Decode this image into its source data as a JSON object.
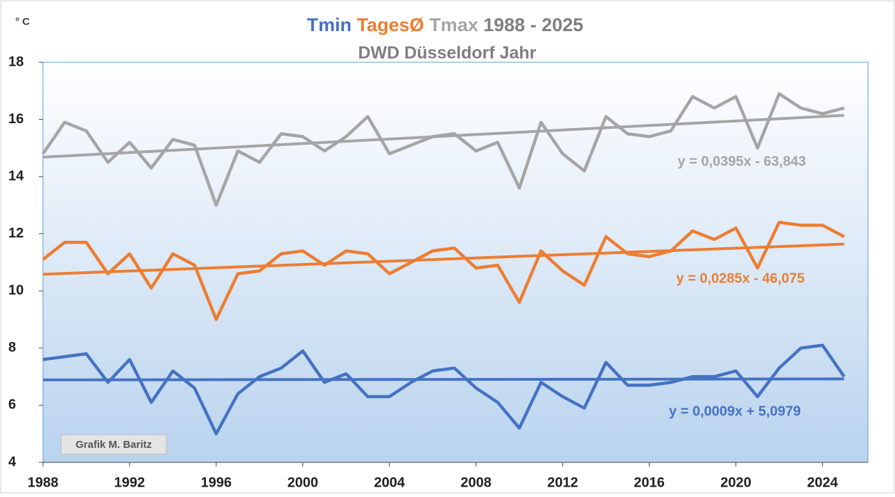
{
  "chart_data": {
    "type": "line",
    "title": "1988 - 2025",
    "subtitle": "DWD Düsseldorf Jahr",
    "y_unit": "° C",
    "annotation": "Grafik M. Baritz",
    "x": [
      1988,
      1989,
      1990,
      1991,
      1992,
      1993,
      1994,
      1995,
      1996,
      1997,
      1998,
      1999,
      2000,
      2001,
      2002,
      2003,
      2004,
      2005,
      2006,
      2007,
      2008,
      2009,
      2010,
      2011,
      2012,
      2013,
      2014,
      2015,
      2016,
      2017,
      2018,
      2019,
      2020,
      2021,
      2022,
      2023,
      2024,
      2025
    ],
    "xlim": [
      1988,
      2026.1
    ],
    "xticks": [
      1988,
      1992,
      1996,
      2000,
      2004,
      2008,
      2012,
      2016,
      2020,
      2024
    ],
    "ylim": [
      4,
      18
    ],
    "yticks": [
      4,
      6,
      8,
      10,
      12,
      14,
      16,
      18
    ],
    "series": [
      {
        "name": "Tmin",
        "color": "#4472c4",
        "values": [
          7.6,
          7.7,
          7.8,
          6.8,
          7.6,
          6.1,
          7.2,
          6.6,
          5.0,
          6.4,
          7.0,
          7.3,
          7.9,
          6.8,
          7.1,
          6.3,
          6.3,
          6.8,
          7.2,
          7.3,
          6.6,
          6.1,
          5.2,
          6.8,
          6.3,
          5.9,
          7.5,
          6.7,
          6.7,
          6.8,
          7.0,
          7.0,
          7.2,
          6.3,
          7.3,
          8.0,
          8.1,
          7.0
        ],
        "trend": {
          "slope": 0.0009,
          "intercept": 5.0979,
          "label": "y = 0,0009x + 5,0979"
        }
      },
      {
        "name": "TagesØ",
        "color": "#ed7d31",
        "values": [
          11.1,
          11.7,
          11.7,
          10.6,
          11.3,
          10.1,
          11.3,
          10.9,
          9.0,
          10.6,
          10.7,
          11.3,
          11.4,
          10.9,
          11.4,
          11.3,
          10.6,
          11.0,
          11.4,
          11.5,
          10.8,
          10.9,
          9.6,
          11.4,
          10.7,
          10.2,
          11.9,
          11.3,
          11.2,
          11.4,
          12.1,
          11.8,
          12.2,
          10.8,
          12.4,
          12.3,
          12.3,
          11.9
        ],
        "trend": {
          "slope": 0.0285,
          "intercept": -46.075,
          "label": "y = 0,0285x - 46,075"
        }
      },
      {
        "name": "Tmax",
        "color": "#a5a5a5",
        "values": [
          14.8,
          15.9,
          15.6,
          14.5,
          15.2,
          14.3,
          15.3,
          15.1,
          13.0,
          14.9,
          14.5,
          15.5,
          15.4,
          14.9,
          15.4,
          16.1,
          14.8,
          15.1,
          15.4,
          15.5,
          14.9,
          15.2,
          13.6,
          15.9,
          14.8,
          14.2,
          16.1,
          15.5,
          15.4,
          15.6,
          16.8,
          16.4,
          16.8,
          15.0,
          16.9,
          16.4,
          16.2,
          16.4
        ],
        "trend": {
          "slope": 0.0395,
          "intercept": -63.843,
          "label": "y = 0,0395x - 63,843"
        }
      }
    ]
  }
}
